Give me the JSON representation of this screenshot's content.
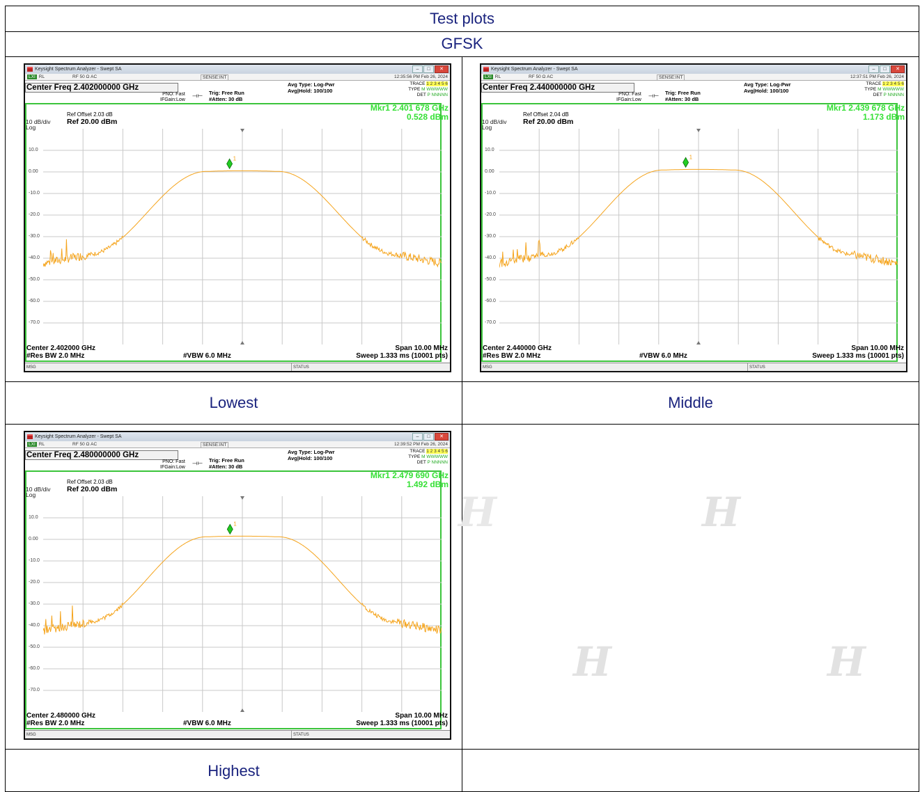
{
  "header": {
    "title": "Test plots",
    "modulation": "GFSK"
  },
  "captions": {
    "lowest": "Lowest",
    "middle": "Middle",
    "highest": "Highest"
  },
  "analyzer": {
    "window_title": "Keysight Spectrum Analyzer - Swept SA",
    "rl": "RL",
    "rf_info": "RF    50 Ω  AC",
    "sense": "SENSE:INT",
    "pno": "PNO: Fast",
    "ifgain": "IFGain:Low",
    "trig": "Trig: Free Run",
    "atten": "#Atten: 30 dB",
    "avg_type": "Avg Type: Log-Pwr",
    "avg_hold": "Avg|Hold: 100/100",
    "trace_lbl": "TRACE",
    "trace_nums": "1 2 3 4 5 6",
    "type_lbl": "TYPE",
    "type_val": "M WWWWW",
    "det_lbl": "DET",
    "det_val": "P NNNNN",
    "ref_level": "Ref 20.00 dBm",
    "scale": "10 dB/div",
    "log": "Log",
    "y_ticks": [
      "10.0",
      "0.00",
      "-10.0",
      "-20.0",
      "-30.0",
      "-40.0",
      "-50.0",
      "-60.0",
      "-70.0"
    ],
    "span": "Span 10.00 MHz",
    "res_bw": "#Res BW 2.0 MHz",
    "vbw": "#VBW 6.0 MHz",
    "sweep": "Sweep  1.333 ms (10001 pts)",
    "msg": "MSG",
    "status": "STATUS",
    "marker_num": "1"
  },
  "plots": [
    {
      "id": "lowest",
      "time": "12:35:56 PM Feb 26, 2024",
      "center_freq": "Center Freq 2.402000000 GHz",
      "ref_offset": "Ref Offset 2.03 dB",
      "marker_freq": "Mkr1 2.401 678 GHz",
      "marker_level": "0.528 dBm",
      "center": "Center 2.402000 GHz",
      "peak_dbm": 0.528,
      "marker_offset_mhz": -0.322
    },
    {
      "id": "middle",
      "time": "12:37:51 PM Feb 26, 2024",
      "center_freq": "Center Freq 2.440000000 GHz",
      "ref_offset": "Ref Offset 2.04 dB",
      "marker_freq": "Mkr1 2.439 678 GHz",
      "marker_level": "1.173 dBm",
      "center": "Center 2.440000 GHz",
      "peak_dbm": 1.173,
      "marker_offset_mhz": -0.322
    },
    {
      "id": "highest",
      "time": "12:39:52 PM Feb 26, 2024",
      "center_freq": "Center Freq 2.480000000 GHz",
      "ref_offset": "Ref Offset 2.03 dB",
      "marker_freq": "Mkr1 2.479 690 GHz",
      "marker_level": "1.492 dBm",
      "center": "Center 2.480000 GHz",
      "peak_dbm": 1.492,
      "marker_offset_mhz": -0.31
    }
  ],
  "colors": {
    "trace": "#f5a41c",
    "marker": "#22cc22",
    "frame": "#3bc43b",
    "caption": "#1a237e"
  }
}
